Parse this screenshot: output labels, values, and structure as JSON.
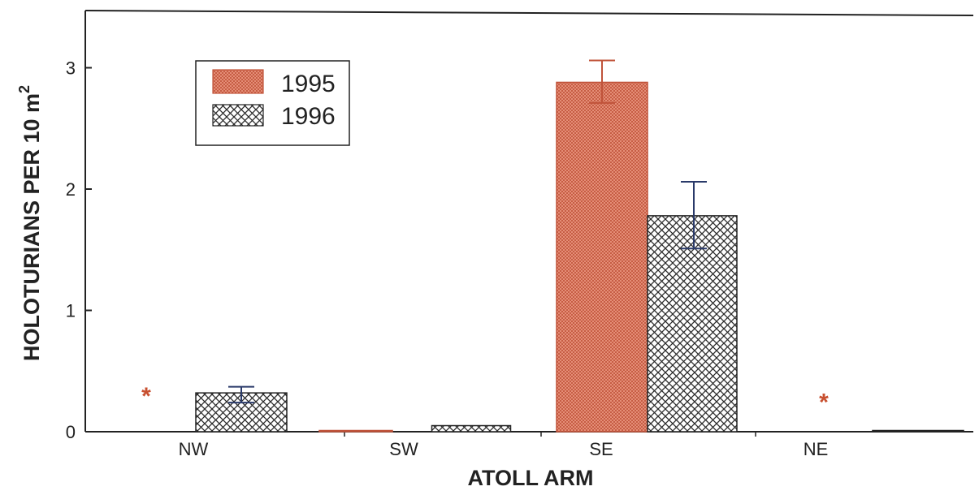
{
  "chart_data": {
    "type": "bar",
    "title": "",
    "xlabel": "ATOLL ARM",
    "ylabel_main": "HOLOTURIANS PER 10 m",
    "ylabel_sup": "2",
    "categories": [
      "NW",
      "SW",
      "SE",
      "NE"
    ],
    "yticks": [
      "0",
      "1",
      "2",
      "3"
    ],
    "ylim": [
      0,
      3.5
    ],
    "legend_position": "top-left",
    "series": [
      {
        "name": "1995",
        "color": "#d4684f",
        "values": [
          0,
          0.01,
          2.88,
          0
        ],
        "error_upper": [
          null,
          null,
          3.06,
          null
        ],
        "error_lower": [
          null,
          null,
          2.71,
          null
        ]
      },
      {
        "name": "1996",
        "color": "#2b2b2b",
        "values": [
          0.32,
          0.05,
          1.78,
          0.01
        ],
        "error_upper": [
          0.37,
          null,
          2.06,
          null
        ],
        "error_lower": [
          0.24,
          null,
          1.51,
          null
        ]
      }
    ],
    "annotations": [
      {
        "text": "*",
        "category": "NW",
        "y": 0.32,
        "color": "#c85030"
      },
      {
        "text": "*",
        "category": "NE",
        "y": 0.27,
        "color": "#c85030"
      }
    ]
  }
}
